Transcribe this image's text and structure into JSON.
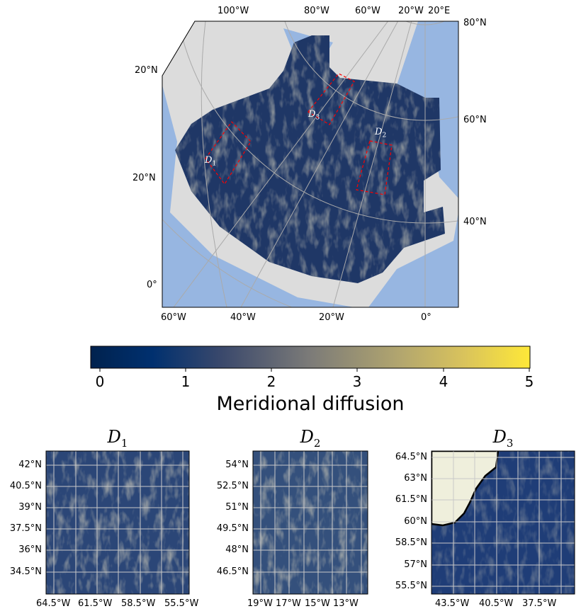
{
  "main_map": {
    "top_lon_labels": [
      "100°W",
      "80°W",
      "60°W",
      "20°W",
      "20°E"
    ],
    "right_lat_labels": [
      "80°N",
      "60°N",
      "40°N"
    ],
    "left_lat_labels": [
      "20°N",
      "20°N",
      "0°"
    ],
    "bottom_lon_labels": [
      "60°W",
      "40°W",
      "20°W",
      "0°"
    ],
    "regions": [
      {
        "label": "D",
        "sub": "1"
      },
      {
        "label": "D",
        "sub": "2"
      },
      {
        "label": "D",
        "sub": "3"
      }
    ],
    "colors": {
      "land": "#dcdcdc",
      "ocean": "#97b6e1",
      "region_box": "#ff0000",
      "field_low": "#00224e",
      "field_mid": "#7c7b78"
    }
  },
  "colorbar": {
    "label": "Meridional diffusion",
    "ticks": [
      "0",
      "1",
      "2",
      "3",
      "4",
      "5"
    ],
    "range": [
      -0.1,
      5
    ],
    "colormap": "cividis"
  },
  "panels": [
    {
      "title": "D",
      "sub": "1",
      "lat_labels": [
        "42°N",
        "40.5°N",
        "39°N",
        "37.5°N",
        "36°N",
        "34.5°N"
      ],
      "lon_labels": [
        "64.5°W",
        "61.5°W",
        "58.5°W",
        "55.5°W"
      ]
    },
    {
      "title": "D",
      "sub": "2",
      "lat_labels": [
        "54°N",
        "52.5°N",
        "51°N",
        "49.5°N",
        "48°N",
        "46.5°N"
      ],
      "lon_labels": [
        "19°W",
        "17°W",
        "15°W",
        "13°W"
      ]
    },
    {
      "title": "D",
      "sub": "3",
      "lat_labels": [
        "64.5°N",
        "63°N",
        "61.5°N",
        "60°N",
        "58.5°N",
        "57°N",
        "55.5°N"
      ],
      "lon_labels": [
        "43.5°W",
        "40.5°W",
        "37.5°W"
      ]
    }
  ]
}
